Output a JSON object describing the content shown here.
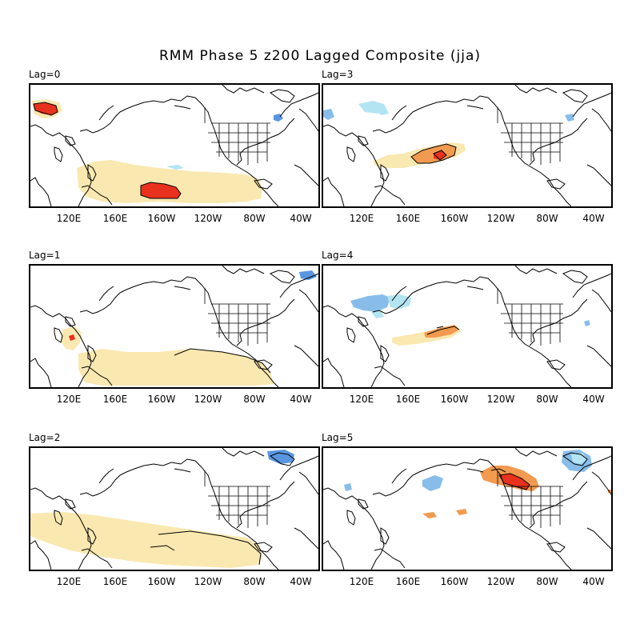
{
  "title": "RMM Phase 5 z200 Lagged Composite (jja)",
  "x_tick_labels": [
    "120E",
    "160E",
    "160W",
    "120W",
    "80W",
    "40W"
  ],
  "colors": {
    "light_yellow": "#f9e8b0",
    "orange": "#f29a50",
    "red": "#e8321e",
    "light_blue": "#b3e4f2",
    "medium_blue": "#88bdea",
    "blue": "#5a96e0",
    "coastline": "#000000"
  },
  "panels": [
    {
      "id": "lag0",
      "label": "Lag=0"
    },
    {
      "id": "lag1",
      "label": "Lag=1"
    },
    {
      "id": "lag2",
      "label": "Lag=2"
    },
    {
      "id": "lag3",
      "label": "Lag=3"
    },
    {
      "id": "lag4",
      "label": "Lag=4"
    },
    {
      "id": "lag5",
      "label": "Lag=5"
    }
  ]
}
